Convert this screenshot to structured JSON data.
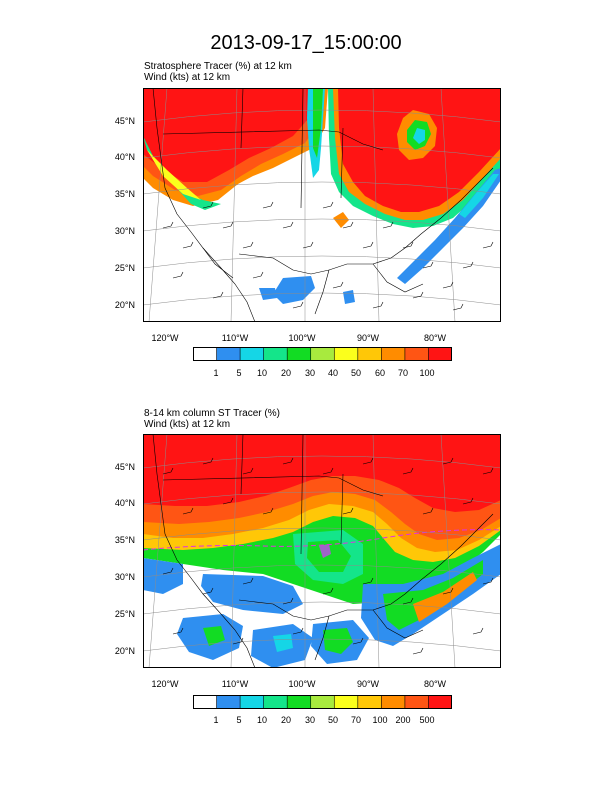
{
  "title": "2013-09-17_15:00:00",
  "panels": [
    {
      "title_line1": "Stratosphere Tracer   (%)     at   12 km",
      "title_line2": "Wind   (kts)     at   12 km",
      "lat_labels": [
        "45°N",
        "40°N",
        "35°N",
        "30°N",
        "25°N",
        "20°N"
      ],
      "lon_labels": [
        "120°W",
        "110°W",
        "100°W",
        "90°W",
        "80°W"
      ],
      "colorbar_labels": [
        "1",
        "5",
        "10",
        "20",
        "30",
        "40",
        "50",
        "60",
        "70",
        "100"
      ]
    },
    {
      "title_line1": "8-14 km column ST Tracer   (%)",
      "title_line2": "Wind   (kts)     at   12 km",
      "lat_labels": [
        "45°N",
        "40°N",
        "35°N",
        "30°N",
        "25°N",
        "20°N"
      ],
      "lon_labels": [
        "120°W",
        "110°W",
        "100°W",
        "90°W",
        "80°W"
      ],
      "colorbar_labels": [
        "1",
        "5",
        "10",
        "20",
        "30",
        "50",
        "70",
        "100",
        "200",
        "500"
      ]
    }
  ],
  "colorbar_colors": [
    "#ffffff",
    "#2f8ff0",
    "#15d6e6",
    "#14e58a",
    "#12dc23",
    "#a8ea3e",
    "#fbff1c",
    "#ffc707",
    "#ff8c00",
    "#ff5514",
    "#ff1414"
  ]
}
